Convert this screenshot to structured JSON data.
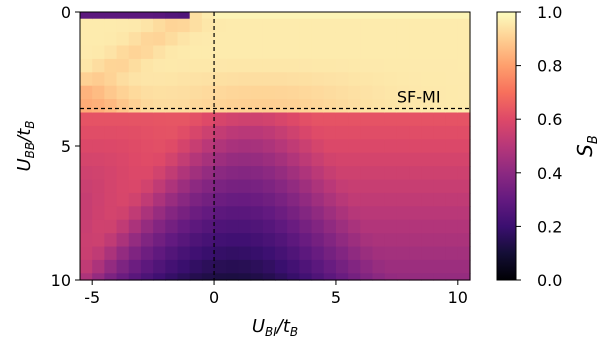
{
  "chart_data": {
    "type": "heatmap",
    "x_range": [
      -5.5,
      10.5
    ],
    "y_range": [
      0,
      10
    ],
    "y_inverted": true,
    "x_ticks": [
      -5,
      0,
      5,
      10
    ],
    "y_ticks": [
      0,
      5,
      10
    ],
    "x_tick_labels": [
      "-5",
      "0",
      "5",
      "10"
    ],
    "y_tick_labels": [
      "0",
      "5",
      "10"
    ],
    "xlabel_main": "U",
    "xlabel_sub": "BI",
    "xlabel_mid": "/t",
    "xlabel_sub2": "B",
    "ylabel_main": "U",
    "ylabel_sub": "BB",
    "ylabel_mid": "/t",
    "ylabel_sub2": "B",
    "colorbar": {
      "label_main": "S",
      "label_sub": "B",
      "range": [
        0.0,
        1.0
      ],
      "ticks": [
        0.0,
        0.2,
        0.4,
        0.6,
        0.8,
        1.0
      ],
      "tick_labels": [
        "0.0",
        "0.2",
        "0.4",
        "0.6",
        "0.8",
        "1.0"
      ],
      "colormap": "magma"
    },
    "grid": {
      "nx": 32,
      "ny": 21
    },
    "reference_lines": {
      "vertical_x": 0,
      "horizontal_y": 3.6,
      "style": "dashed"
    },
    "annotation": "SF-MI"
  }
}
